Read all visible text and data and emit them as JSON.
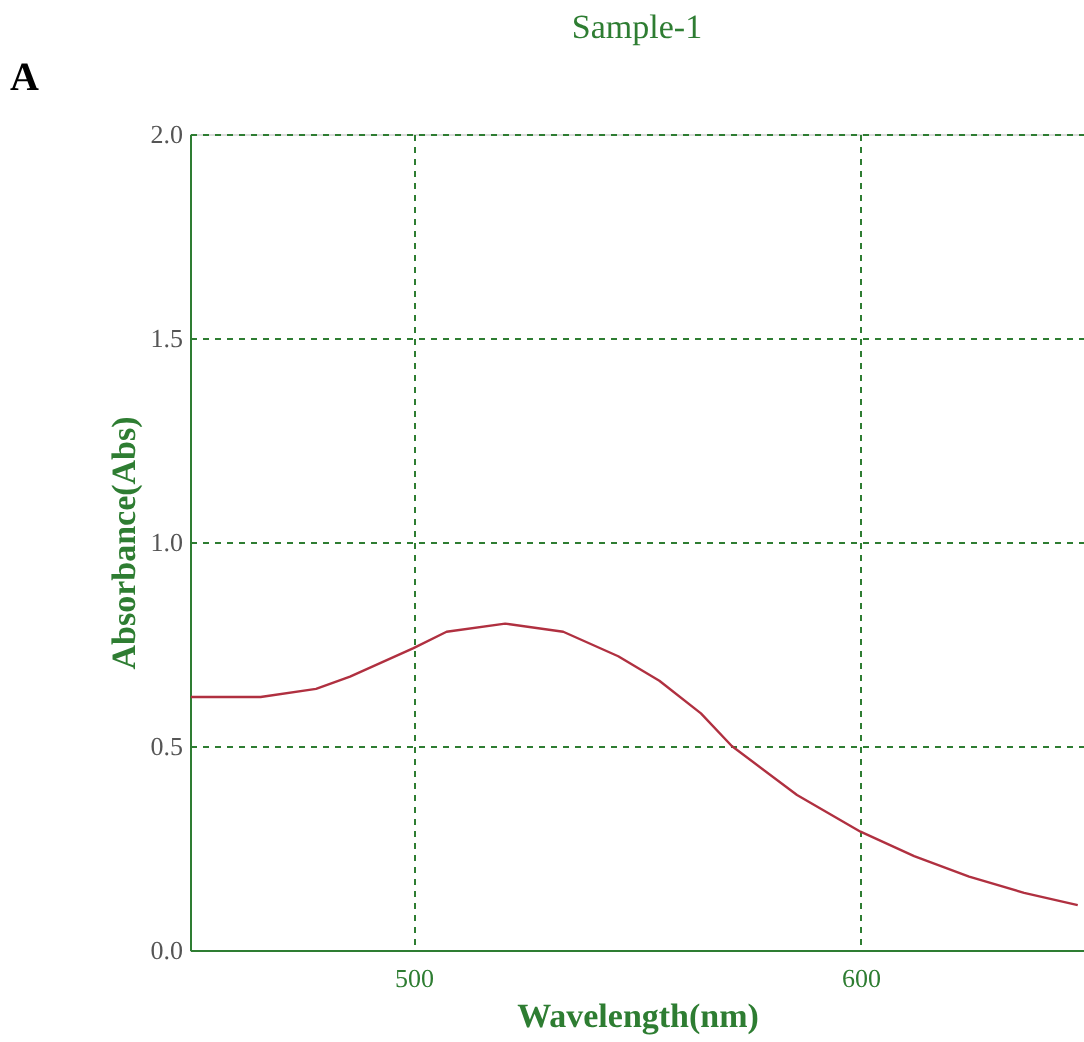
{
  "chart_data": {
    "type": "line",
    "title": "Sample-1",
    "xlabel": "Wavelength(nm)",
    "ylabel": "Absorbance(Abs)",
    "annotations": [
      "A"
    ],
    "x": [
      450.2,
      465.8,
      478.2,
      485.8,
      500,
      507.4,
      520.5,
      533.5,
      545.8,
      555,
      564.3,
      571.2,
      585.8,
      600,
      612,
      624.3,
      636.6,
      648.6
    ],
    "series": [
      {
        "color": "#b03040",
        "values": [
          0.62,
          0.62,
          0.64,
          0.67,
          0.74,
          0.78,
          0.8,
          0.78,
          0.72,
          0.66,
          0.58,
          0.5,
          0.38,
          0.29,
          0.23,
          0.18,
          0.14,
          0.11
        ]
      }
    ],
    "xlim": [
      450,
      650
    ],
    "xticks": [
      500,
      600
    ],
    "ylim": [
      0,
      2
    ],
    "yticks": [
      {
        "value": 0,
        "label": "0.0"
      },
      0.5,
      {
        "value": 1,
        "label": "1.0"
      },
      1.5,
      {
        "value": 2,
        "label": "2.0"
      }
    ],
    "grid": true,
    "marker": "none",
    "line_style": "solid"
  }
}
